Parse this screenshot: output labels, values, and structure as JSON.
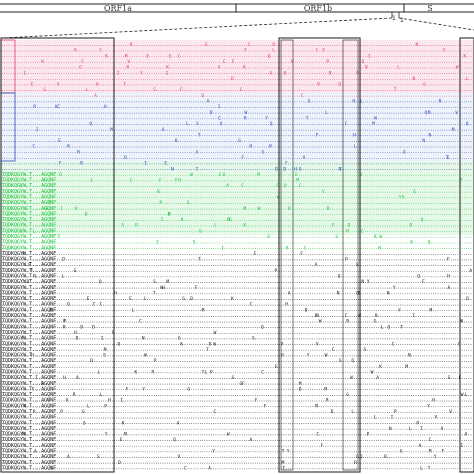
{
  "genome_map": {
    "segments": [
      {
        "label": "ORF1a",
        "color": "#222222"
      },
      {
        "label": "ORF1b",
        "color": "#222222"
      },
      {
        "label": "S",
        "color": "#222222"
      }
    ]
  },
  "alignment": {
    "groups": [
      {
        "key": "red",
        "color": "#e0406a",
        "rows": 10
      },
      {
        "key": "blue",
        "color": "#2a4fb8",
        "rows": 13
      },
      {
        "key": "green",
        "color": "#19c43a",
        "rows": 14
      },
      {
        "key": "black",
        "color": "#222222",
        "rows": 39
      }
    ],
    "row_prefix_black": "TQDKQGYW.T...AGQNF",
    "boxed_columns": [
      "ORF1b region",
      "S region"
    ]
  },
  "colors": {
    "red_band": "#fbe7ee",
    "blue_band": "#eaf0fb",
    "green_band": "#e4f8e6",
    "box_stroke": "#1a1a1a"
  }
}
